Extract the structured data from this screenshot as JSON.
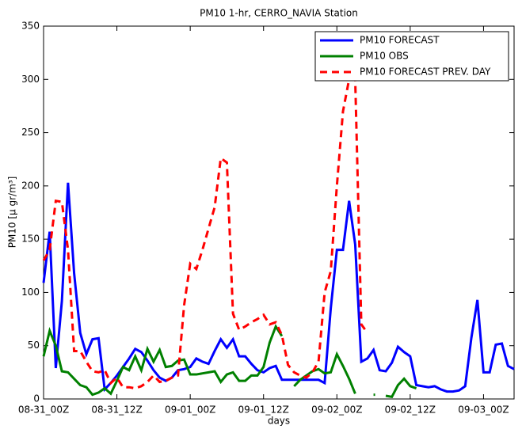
{
  "chart_data": {
    "type": "line",
    "title": "PM10 1-hr, CERRO_NAVIA Station",
    "xlabel": "days",
    "ylabel": "PM10 [µ gr/m³]",
    "x": [
      0,
      1,
      2,
      3,
      4,
      5,
      6,
      7,
      8,
      9,
      10,
      11,
      12,
      13,
      14,
      15,
      16,
      17,
      18,
      19,
      20,
      21,
      22,
      23,
      24,
      25,
      26,
      27,
      28,
      29,
      30,
      31,
      32,
      33,
      34,
      35,
      36,
      37,
      38,
      39,
      40,
      41,
      42,
      43,
      44,
      45,
      46,
      47,
      48,
      49,
      50,
      51,
      52,
      53,
      54,
      55,
      56,
      57,
      58,
      59,
      60,
      61,
      62,
      63,
      64,
      65,
      66,
      67,
      68,
      69,
      70,
      71,
      72,
      73,
      74,
      75,
      76,
      77
    ],
    "series": [
      {
        "name": "PM10 FORECAST",
        "color": "#0000ff",
        "dash": false,
        "values": [
          109,
          157,
          29,
          92,
          203,
          118,
          62,
          42,
          56,
          57,
          9,
          15,
          22,
          30,
          38,
          47,
          44,
          36,
          27,
          20,
          17,
          20,
          27,
          28,
          30,
          38,
          35,
          33,
          45,
          56,
          48,
          56,
          40,
          40,
          33,
          27,
          25,
          29,
          31,
          18,
          18,
          18,
          18,
          18,
          18,
          18,
          15,
          85,
          140,
          140,
          186,
          145,
          35,
          38,
          46,
          27,
          26,
          34,
          49,
          44,
          40,
          13,
          12,
          11,
          12,
          9,
          7,
          7,
          8,
          12,
          57,
          93,
          25,
          25,
          51,
          52,
          31,
          28
        ]
      },
      {
        "name": "PM10 OBS",
        "color": "#008000",
        "dash": false,
        "values": [
          40,
          64,
          50,
          26,
          25,
          19,
          13,
          11,
          4,
          6,
          10,
          5,
          17,
          30,
          27,
          40,
          27,
          47,
          35,
          46,
          30,
          31,
          36,
          37,
          23,
          23,
          24,
          25,
          26,
          16,
          23,
          25,
          17,
          17,
          22,
          22,
          30,
          53,
          68,
          59,
          null,
          12,
          18,
          22,
          26,
          28,
          24,
          25,
          42,
          31,
          19,
          5,
          null,
          null,
          4,
          null,
          3,
          2,
          13,
          19,
          12,
          10,
          null,
          null,
          null,
          null,
          null,
          null,
          null,
          null,
          null,
          null,
          null,
          null,
          null,
          null,
          null,
          null
        ]
      },
      {
        "name": "PM10 FORECAST PREV. DAY",
        "color": "#ff0000",
        "dash": true,
        "values": [
          130,
          140,
          186,
          185,
          140,
          45,
          45,
          35,
          26,
          25,
          27,
          15,
          20,
          11,
          11,
          10,
          12,
          16,
          22,
          16,
          17,
          20,
          22,
          88,
          127,
          122,
          140,
          160,
          180,
          226,
          222,
          80,
          65,
          68,
          72,
          75,
          79,
          70,
          72,
          60,
          32,
          25,
          22,
          20,
          25,
          35,
          100,
          120,
          200,
          270,
          300,
          300,
          70,
          62,
          null,
          null,
          null,
          null,
          null,
          null,
          null,
          null,
          null,
          null,
          null,
          null,
          null,
          null,
          null,
          null,
          null,
          null,
          null,
          null,
          null,
          null,
          null,
          null
        ]
      }
    ],
    "xlim": [
      0,
      77
    ],
    "xticks": [
      {
        "value": 0,
        "label": "08-31_00Z"
      },
      {
        "value": 12,
        "label": "08-31_12Z"
      },
      {
        "value": 24,
        "label": "09-01_00Z"
      },
      {
        "value": 36,
        "label": "09-01_12Z"
      },
      {
        "value": 48,
        "label": "09-02_00Z"
      },
      {
        "value": 60,
        "label": "09-02_12Z"
      },
      {
        "value": 72,
        "label": "09-03_00Z"
      }
    ],
    "ylim": [
      0,
      350
    ],
    "yticks": [
      0,
      50,
      100,
      150,
      200,
      250,
      300,
      350
    ],
    "grid": false,
    "legend": "upper right"
  }
}
